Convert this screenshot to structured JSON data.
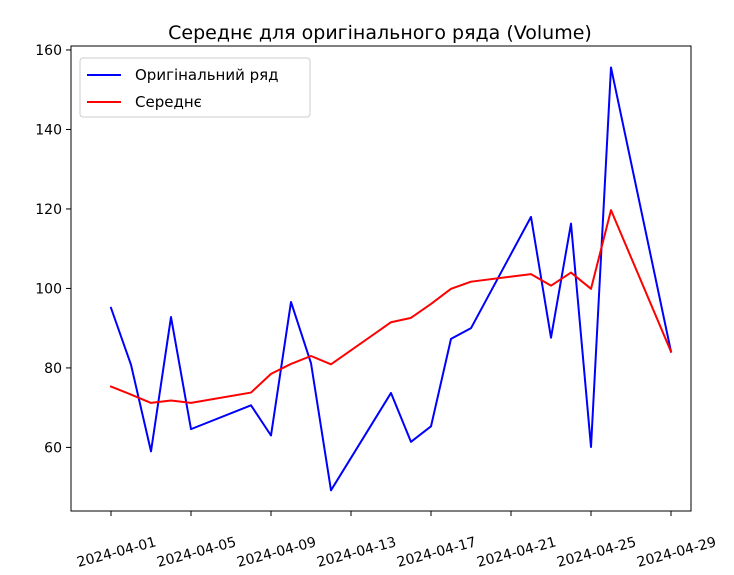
{
  "chart_data": {
    "type": "line",
    "title": "Середнє для оригінального ряда (Volume)",
    "xlabel": "",
    "ylabel": "",
    "x_type": "date",
    "xlim": [
      "2024-03-30",
      "2024-04-30"
    ],
    "ylim": [
      44,
      161
    ],
    "x_ticks": [
      "2024-04-01",
      "2024-04-05",
      "2024-04-09",
      "2024-04-13",
      "2024-04-17",
      "2024-04-21",
      "2024-04-25",
      "2024-04-29"
    ],
    "y_ticks": [
      60,
      80,
      100,
      120,
      140,
      160
    ],
    "grid": false,
    "legend_position": "top-left",
    "series": [
      {
        "name": "Оригінальний ряд",
        "color": "#0000ff",
        "x": [
          "2024-04-01",
          "2024-04-02",
          "2024-04-03",
          "2024-04-04",
          "2024-04-05",
          "2024-04-08",
          "2024-04-09",
          "2024-04-10",
          "2024-04-11",
          "2024-04-12",
          "2024-04-15",
          "2024-04-16",
          "2024-04-17",
          "2024-04-18",
          "2024-04-19",
          "2024-04-22",
          "2024-04-23",
          "2024-04-24",
          "2024-04-25",
          "2024-04-26",
          "2024-04-29"
        ],
        "values": [
          95.1,
          80.8,
          59.0,
          92.8,
          64.6,
          70.6,
          63.0,
          96.6,
          81.2,
          49.2,
          73.7,
          61.4,
          65.3,
          87.3,
          90.0,
          118.0,
          87.6,
          116.3,
          60.1,
          155.6,
          84.1
        ]
      },
      {
        "name": "Середнє",
        "color": "#ff0000",
        "x": [
          "2024-04-01",
          "2024-04-02",
          "2024-04-03",
          "2024-04-04",
          "2024-04-05",
          "2024-04-08",
          "2024-04-09",
          "2024-04-10",
          "2024-04-11",
          "2024-04-12",
          "2024-04-15",
          "2024-04-16",
          "2024-04-17",
          "2024-04-18",
          "2024-04-19",
          "2024-04-22",
          "2024-04-23",
          "2024-04-24",
          "2024-04-25",
          "2024-04-26",
          "2024-04-29"
        ],
        "values": [
          75.3,
          73.3,
          71.2,
          71.8,
          71.2,
          73.8,
          78.5,
          81.0,
          83.0,
          80.9,
          91.5,
          92.6,
          96.1,
          99.9,
          101.7,
          103.6,
          100.7,
          104.0,
          99.9,
          119.7,
          84.1
        ]
      }
    ]
  }
}
